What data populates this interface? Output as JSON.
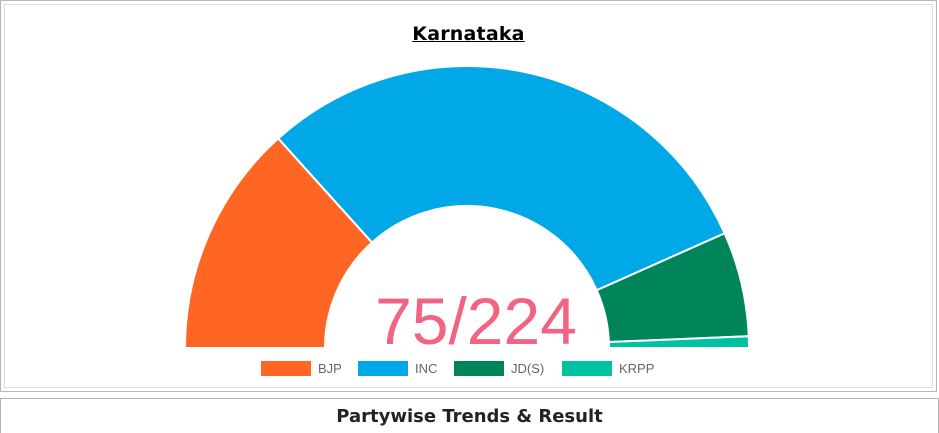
{
  "section": {
    "title": "Partywise Trends & Result"
  },
  "chart_data": {
    "type": "pie",
    "subtype": "semi-donut",
    "title": "Karnataka",
    "center_label": "75/224",
    "total_seats": 224,
    "categories": [
      "BJP",
      "INC",
      "JD(S)",
      "KRPP"
    ],
    "values": [
      20,
      45,
      9,
      1
    ],
    "colors": [
      "#ff6624",
      "#00a8e8",
      "#00855a",
      "#00c2a0"
    ],
    "center_label_color": "#f26582",
    "legend_position": "bottom"
  }
}
